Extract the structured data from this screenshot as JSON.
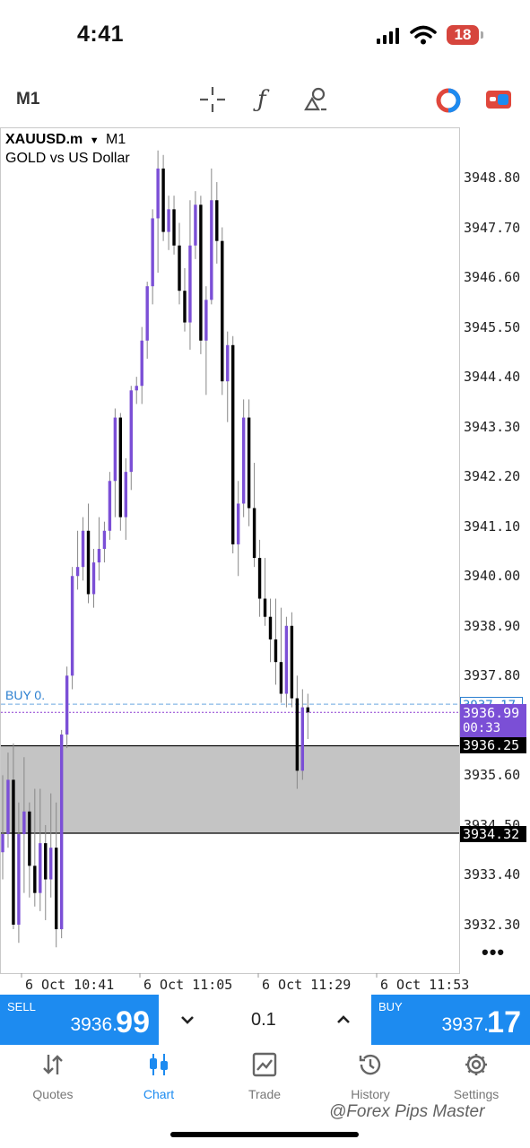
{
  "status_bar": {
    "time": "4:41",
    "battery": "18"
  },
  "toolbar": {
    "timeframe": "M1",
    "icons": [
      "crosshair-icon",
      "function-icon",
      "objects-icon",
      "color-switch-icon",
      "trade-toggle-icon"
    ]
  },
  "chart": {
    "symbol": "XAUUSD.m",
    "timeframe": "M1",
    "description": "GOLD vs US Dollar",
    "price_axis": [
      "3948.80",
      "3947.70",
      "3946.60",
      "3945.50",
      "3944.40",
      "3943.30",
      "3942.20",
      "3941.10",
      "3940.00",
      "3938.90",
      "3937.80",
      "3936.99",
      "00:33",
      "3936.25",
      "3935.60",
      "3934.50",
      "3934.32",
      "3933.40",
      "3932.30"
    ],
    "time_axis": [
      "6 Oct 10:41",
      "6 Oct 11:05",
      "6 Oct 11:29",
      "6 Oct 11:53"
    ],
    "buy_line_label": "BUY 0.",
    "buy_line_price": "3937.17",
    "bid_price": "3936.99",
    "countdown": "00:33",
    "zone_top": "3936.25",
    "zone_bottom": "3934.32",
    "colors": {
      "bull": "#7b4fd6",
      "bear": "#000000",
      "zone": "#c4c4c4",
      "accent": "#1d8bf0"
    }
  },
  "chart_data": {
    "type": "candlestick",
    "ylim": [
      3931.7,
      3949.5
    ],
    "ohlc": [
      [
        3933.9,
        3935.6,
        3933.3,
        3934.3
      ],
      [
        3934.3,
        3936.1,
        3934.0,
        3935.5
      ],
      [
        3935.5,
        3936.3,
        3932.2,
        3932.3
      ],
      [
        3932.3,
        3935.0,
        3931.9,
        3934.3
      ],
      [
        3934.3,
        3936.0,
        3933.0,
        3934.8
      ],
      [
        3934.8,
        3935.0,
        3932.9,
        3933.6
      ],
      [
        3933.6,
        3935.3,
        3932.7,
        3933.0
      ],
      [
        3933.0,
        3935.3,
        3932.6,
        3934.1
      ],
      [
        3934.1,
        3934.5,
        3932.4,
        3933.3
      ],
      [
        3933.3,
        3935.2,
        3932.9,
        3934.0
      ],
      [
        3934.0,
        3935.0,
        3931.8,
        3932.2
      ],
      [
        3932.2,
        3936.6,
        3932.0,
        3936.5
      ],
      [
        3936.5,
        3938.0,
        3936.2,
        3937.8
      ],
      [
        3937.8,
        3940.2,
        3937.5,
        3940.0
      ],
      [
        3940.0,
        3941.0,
        3939.7,
        3940.2
      ],
      [
        3940.2,
        3941.3,
        3939.9,
        3941.0
      ],
      [
        3941.0,
        3941.6,
        3939.4,
        3939.6
      ],
      [
        3939.6,
        3940.6,
        3939.3,
        3940.3
      ],
      [
        3940.3,
        3941.3,
        3939.9,
        3940.6
      ],
      [
        3940.6,
        3941.2,
        3940.3,
        3941.0
      ],
      [
        3941.0,
        3942.3,
        3940.8,
        3942.1
      ],
      [
        3942.1,
        3943.7,
        3941.3,
        3943.5
      ],
      [
        3943.5,
        3943.6,
        3941.0,
        3941.3
      ],
      [
        3941.3,
        3942.6,
        3940.8,
        3942.3
      ],
      [
        3942.3,
        3944.2,
        3941.9,
        3944.1
      ],
      [
        3944.1,
        3944.4,
        3943.8,
        3944.2
      ],
      [
        3944.2,
        3945.5,
        3943.8,
        3945.2
      ],
      [
        3945.2,
        3946.5,
        3944.8,
        3946.4
      ],
      [
        3946.4,
        3948.1,
        3946.0,
        3947.9
      ],
      [
        3947.9,
        3949.4,
        3946.7,
        3949.0
      ],
      [
        3949.0,
        3949.3,
        3947.4,
        3947.6
      ],
      [
        3947.6,
        3948.4,
        3947.2,
        3948.1
      ],
      [
        3948.1,
        3948.4,
        3947.1,
        3947.3
      ],
      [
        3947.3,
        3947.8,
        3946.0,
        3946.3
      ],
      [
        3946.3,
        3946.8,
        3945.4,
        3945.6
      ],
      [
        3945.6,
        3948.3,
        3945.0,
        3947.3
      ],
      [
        3947.3,
        3948.5,
        3947.0,
        3948.2
      ],
      [
        3948.2,
        3948.4,
        3944.9,
        3945.2
      ],
      [
        3945.2,
        3946.4,
        3944.0,
        3946.1
      ],
      [
        3946.1,
        3949.0,
        3946.0,
        3948.3
      ],
      [
        3948.3,
        3948.7,
        3946.9,
        3947.4
      ],
      [
        3947.4,
        3947.7,
        3944.0,
        3944.3
      ],
      [
        3944.3,
        3945.4,
        3943.4,
        3945.1
      ],
      [
        3945.1,
        3945.3,
        3940.5,
        3940.7
      ],
      [
        3940.7,
        3942.1,
        3940.0,
        3941.6
      ],
      [
        3941.6,
        3943.9,
        3941.3,
        3943.5
      ],
      [
        3943.5,
        3943.9,
        3941.1,
        3941.5
      ],
      [
        3941.5,
        3942.5,
        3940.2,
        3940.4
      ],
      [
        3940.4,
        3940.8,
        3939.1,
        3939.5
      ],
      [
        3939.5,
        3940.4,
        3938.9,
        3939.1
      ],
      [
        3939.1,
        3939.5,
        3938.1,
        3938.6
      ],
      [
        3938.6,
        3939.5,
        3937.6,
        3938.1
      ],
      [
        3938.1,
        3939.3,
        3937.2,
        3937.4
      ],
      [
        3937.4,
        3939.1,
        3937.1,
        3938.9
      ],
      [
        3938.9,
        3939.2,
        3937.1,
        3937.3
      ],
      [
        3937.3,
        3937.8,
        3935.3,
        3935.7
      ],
      [
        3935.7,
        3937.5,
        3935.5,
        3937.1
      ],
      [
        3937.1,
        3937.4,
        3936.4,
        3936.99
      ]
    ],
    "levels": {
      "buy": 3937.17,
      "bid": 3936.99,
      "zone_top": 3936.25,
      "zone_bottom": 3934.32
    },
    "ylabel_ticks": [
      3948.8,
      3947.7,
      3946.6,
      3945.5,
      3944.4,
      3943.3,
      3942.2,
      3941.1,
      3940.0,
      3938.9,
      3937.8,
      3935.6,
      3934.5,
      3933.4,
      3932.3
    ],
    "x_ticks": [
      "6 Oct 10:41",
      "6 Oct 11:05",
      "6 Oct 11:29",
      "6 Oct 11:53"
    ]
  },
  "trade_bar": {
    "sell_label": "SELL",
    "sell_price_small": "3936.",
    "sell_price_big": "99",
    "buy_label": "BUY",
    "buy_price_small": "3937.",
    "buy_price_big": "17",
    "lot": "0.1",
    "lot_down": "⌄",
    "lot_up": "⌃"
  },
  "tabs": [
    {
      "label": "Quotes",
      "icon": "⇅"
    },
    {
      "label": "Chart",
      "icon": "⫿"
    },
    {
      "label": "Trade",
      "icon": "📈"
    },
    {
      "label": "History",
      "icon": "⟲"
    },
    {
      "label": "Settings",
      "icon": "⚙"
    }
  ],
  "watermark": "@Forex Pips Master"
}
